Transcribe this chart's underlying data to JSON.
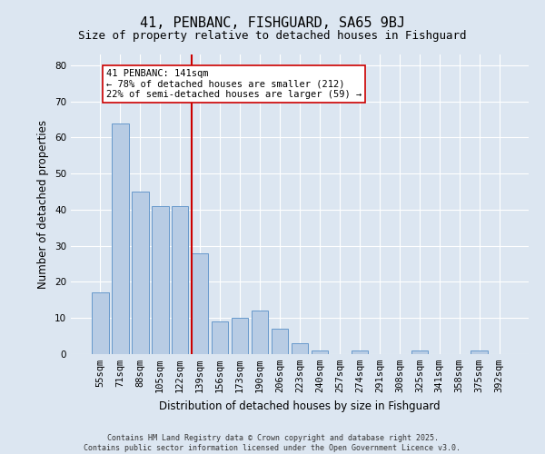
{
  "title": "41, PENBANC, FISHGUARD, SA65 9BJ",
  "subtitle": "Size of property relative to detached houses in Fishguard",
  "xlabel": "Distribution of detached houses by size in Fishguard",
  "ylabel": "Number of detached properties",
  "categories": [
    "55sqm",
    "71sqm",
    "88sqm",
    "105sqm",
    "122sqm",
    "139sqm",
    "156sqm",
    "173sqm",
    "190sqm",
    "206sqm",
    "223sqm",
    "240sqm",
    "257sqm",
    "274sqm",
    "291sqm",
    "308sqm",
    "325sqm",
    "341sqm",
    "358sqm",
    "375sqm",
    "392sqm"
  ],
  "values": [
    17,
    64,
    45,
    41,
    41,
    28,
    9,
    10,
    12,
    7,
    3,
    1,
    0,
    1,
    0,
    0,
    1,
    0,
    0,
    1,
    0
  ],
  "bar_color": "#b8cce4",
  "bar_edge_color": "#6699cc",
  "marker_index": 5,
  "marker_line_color": "#cc0000",
  "annotation_text": "41 PENBANC: 141sqm\n← 78% of detached houses are smaller (212)\n22% of semi-detached houses are larger (59) →",
  "annotation_box_color": "#ffffff",
  "annotation_box_edge_color": "#cc0000",
  "ylim": [
    0,
    83
  ],
  "yticks": [
    0,
    10,
    20,
    30,
    40,
    50,
    60,
    70,
    80
  ],
  "background_color": "#dce6f1",
  "plot_bg_color": "#dce6f1",
  "footer": "Contains HM Land Registry data © Crown copyright and database right 2025.\nContains public sector information licensed under the Open Government Licence v3.0.",
  "title_fontsize": 11,
  "subtitle_fontsize": 9,
  "xlabel_fontsize": 8.5,
  "ylabel_fontsize": 8.5,
  "tick_fontsize": 7.5,
  "annotation_fontsize": 7.5,
  "footer_fontsize": 6
}
